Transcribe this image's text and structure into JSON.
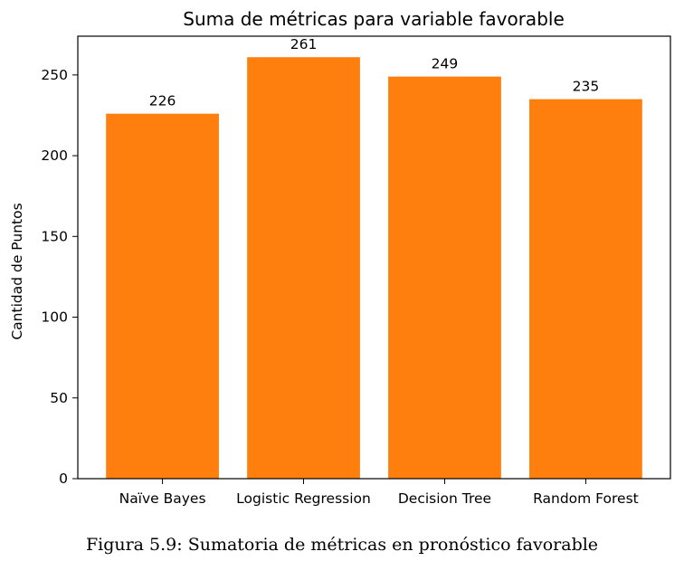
{
  "chart_data": {
    "type": "bar",
    "title": "Suma de métricas para variable favorable",
    "xlabel": "",
    "ylabel": "Cantidad de Puntos",
    "categories": [
      "Naïve Bayes",
      "Logistic Regression",
      "Decision Tree",
      "Random Forest"
    ],
    "values": [
      226,
      261,
      249,
      235
    ],
    "data_labels": [
      "226",
      "261",
      "249",
      "235"
    ],
    "ylim": [
      0,
      274
    ],
    "yticks": [
      0,
      50,
      100,
      150,
      200,
      250
    ],
    "bar_color": "#ff7f0e",
    "grid": false
  },
  "caption": "Figura 5.9: Sumatoria de métricas en pronóstico favorable"
}
